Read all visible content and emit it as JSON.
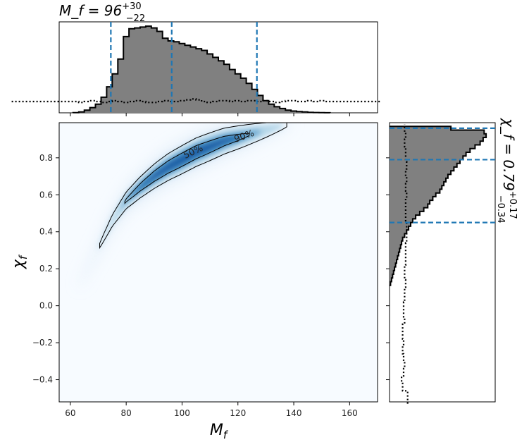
{
  "chart_data": [
    {
      "type": "heatmap",
      "panel": "joint",
      "xlabel": "M_f",
      "ylabel": "χ_f",
      "xlim": [
        56,
        170
      ],
      "ylim": [
        -0.52,
        0.99
      ],
      "xticks": [
        60,
        80,
        100,
        120,
        140,
        160
      ],
      "yticks": [
        -0.4,
        -0.2,
        0.0,
        0.2,
        0.4,
        0.6,
        0.8
      ],
      "colormap": "Blues",
      "ridge": {
        "mass": [
          72,
          75,
          80,
          85,
          90,
          95,
          100,
          105,
          110,
          115,
          120,
          125,
          130,
          135
        ],
        "spin": [
          0.37,
          0.46,
          0.57,
          0.64,
          0.7,
          0.75,
          0.79,
          0.83,
          0.86,
          0.89,
          0.91,
          0.93,
          0.95,
          0.97
        ]
      },
      "contours": [
        {
          "label": "50%",
          "level": 0.5
        },
        {
          "label": "90%",
          "level": 0.9
        }
      ]
    },
    {
      "type": "bar",
      "panel": "mass-marginal",
      "title_main": "M_f = 96",
      "title_sup": "+30",
      "title_sub": "−22",
      "bins_x": [
        62,
        64,
        66,
        68,
        70,
        72,
        74,
        76,
        78,
        80,
        82,
        84,
        86,
        88,
        90,
        92,
        94,
        96,
        98,
        100,
        102,
        104,
        106,
        108,
        110,
        112,
        114,
        116,
        118,
        120,
        122,
        124,
        126,
        128,
        130,
        132,
        134,
        136,
        138,
        140,
        142,
        144,
        146,
        148,
        150,
        152
      ],
      "values": [
        0.002,
        0.01,
        0.03,
        0.06,
        0.1,
        0.18,
        0.3,
        0.45,
        0.62,
        0.88,
        0.97,
        0.98,
        0.99,
        1.0,
        0.98,
        0.94,
        0.86,
        0.83,
        0.82,
        0.8,
        0.78,
        0.76,
        0.74,
        0.72,
        0.68,
        0.64,
        0.6,
        0.56,
        0.5,
        0.45,
        0.4,
        0.34,
        0.27,
        0.2,
        0.14,
        0.1,
        0.07,
        0.05,
        0.03,
        0.02,
        0.015,
        0.01,
        0.005,
        0.003,
        0.002,
        0.001
      ],
      "prior": [
        0.13,
        0.12,
        0.13,
        0.14,
        0.13,
        0.12,
        0.13,
        0.14,
        0.13,
        0.12,
        0.13,
        0.14,
        0.13,
        0.12,
        0.12,
        0.13,
        0.14,
        0.13,
        0.13,
        0.14,
        0.15,
        0.16,
        0.15,
        0.13,
        0.12,
        0.13,
        0.14,
        0.14,
        0.13,
        0.14,
        0.13,
        0.14,
        0.14,
        0.13,
        0.14,
        0.13,
        0.12,
        0.13,
        0.14,
        0.14,
        0.13,
        0.13,
        0.14,
        0.13,
        0.14,
        0.13
      ],
      "lines": [
        74.5,
        96.3,
        126.8
      ],
      "ylim": [
        0,
        1.05
      ]
    },
    {
      "type": "bar",
      "panel": "spin-marginal",
      "title_main": "χ_f = 0.79",
      "title_sup": "+0.17",
      "title_sub": "−0.34",
      "bins_y": [
        0.12,
        0.14,
        0.16,
        0.18,
        0.2,
        0.22,
        0.24,
        0.26,
        0.28,
        0.3,
        0.32,
        0.34,
        0.36,
        0.38,
        0.4,
        0.42,
        0.44,
        0.46,
        0.48,
        0.5,
        0.52,
        0.54,
        0.56,
        0.58,
        0.6,
        0.62,
        0.64,
        0.66,
        0.68,
        0.7,
        0.72,
        0.74,
        0.76,
        0.78,
        0.8,
        0.82,
        0.84,
        0.86,
        0.88,
        0.9,
        0.92,
        0.94,
        0.96
      ],
      "values": [
        0.01,
        0.02,
        0.03,
        0.04,
        0.05,
        0.06,
        0.07,
        0.08,
        0.09,
        0.1,
        0.11,
        0.12,
        0.13,
        0.15,
        0.17,
        0.19,
        0.21,
        0.23,
        0.26,
        0.3,
        0.34,
        0.38,
        0.4,
        0.43,
        0.46,
        0.5,
        0.52,
        0.54,
        0.56,
        0.58,
        0.61,
        0.64,
        0.67,
        0.7,
        0.73,
        0.76,
        0.8,
        0.85,
        0.9,
        0.93,
        0.96,
        0.94,
        0.61
      ],
      "prior_y": [
        -0.48,
        -0.44,
        -0.4,
        -0.36,
        -0.32,
        -0.28,
        -0.24,
        -0.2,
        -0.16,
        -0.12,
        -0.08,
        -0.04,
        0.0,
        0.04,
        0.08,
        0.12,
        0.16,
        0.2,
        0.24,
        0.28,
        0.32,
        0.36,
        0.4,
        0.44,
        0.48,
        0.52,
        0.56,
        0.6,
        0.64,
        0.68,
        0.72,
        0.76,
        0.8,
        0.84,
        0.88,
        0.92,
        0.96
      ],
      "prior": [
        0.18,
        0.13,
        0.12,
        0.14,
        0.15,
        0.14,
        0.13,
        0.14,
        0.13,
        0.13,
        0.15,
        0.14,
        0.14,
        0.15,
        0.15,
        0.16,
        0.15,
        0.15,
        0.16,
        0.16,
        0.16,
        0.17,
        0.17,
        0.17,
        0.16,
        0.16,
        0.16,
        0.17,
        0.16,
        0.17,
        0.16,
        0.17,
        0.16,
        0.16,
        0.15,
        0.16,
        0.15
      ],
      "lines": [
        0.45,
        0.79,
        0.96
      ],
      "xlim": [
        0,
        1.05
      ]
    }
  ]
}
